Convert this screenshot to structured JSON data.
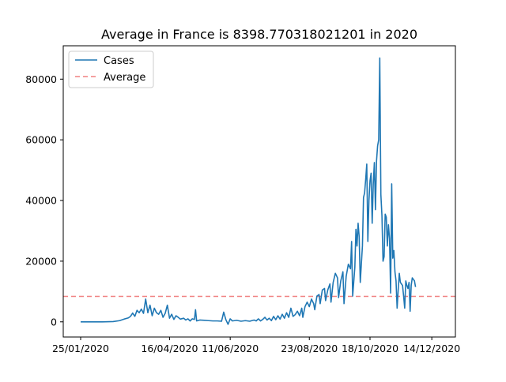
{
  "chart_data": {
    "type": "line",
    "title": "Average in France is 8398.770318021201 in 2020",
    "xlabel": "",
    "ylabel": "",
    "grid": false,
    "legend_position": "upper-left",
    "x_tick_labels": [
      "25/01/2020",
      "16/04/2020",
      "11/06/2020",
      "23/08/2020",
      "18/10/2020",
      "14/12/2020"
    ],
    "x_tick_day_index": [
      0,
      82,
      138,
      211,
      267,
      324
    ],
    "y_ticks": [
      0,
      20000,
      40000,
      60000,
      80000
    ],
    "y_tick_labels": [
      "0",
      "20000",
      "40000",
      "60000",
      "80000"
    ],
    "ylim": [
      -5000,
      91000
    ],
    "x_range_days": [
      0,
      329
    ],
    "series": [
      {
        "name": "Cases",
        "color": "#1f77b4",
        "style": "solid",
        "points": [
          [
            0,
            0
          ],
          [
            10,
            0
          ],
          [
            20,
            0
          ],
          [
            30,
            100
          ],
          [
            36,
            400
          ],
          [
            40,
            900
          ],
          [
            44,
            1300
          ],
          [
            46,
            1800
          ],
          [
            48,
            2900
          ],
          [
            50,
            1800
          ],
          [
            52,
            3800
          ],
          [
            54,
            3000
          ],
          [
            56,
            4200
          ],
          [
            58,
            2800
          ],
          [
            60,
            7500
          ],
          [
            62,
            3000
          ],
          [
            64,
            5500
          ],
          [
            66,
            2000
          ],
          [
            68,
            4500
          ],
          [
            70,
            3000
          ],
          [
            72,
            2500
          ],
          [
            74,
            3800
          ],
          [
            76,
            1500
          ],
          [
            78,
            2800
          ],
          [
            80,
            5500
          ],
          [
            82,
            1200
          ],
          [
            84,
            2500
          ],
          [
            86,
            800
          ],
          [
            88,
            2000
          ],
          [
            90,
            1500
          ],
          [
            92,
            900
          ],
          [
            95,
            1200
          ],
          [
            97,
            600
          ],
          [
            99,
            1000
          ],
          [
            101,
            300
          ],
          [
            103,
            1000
          ],
          [
            105,
            800
          ],
          [
            106,
            4000
          ],
          [
            107,
            300
          ],
          [
            110,
            600
          ],
          [
            114,
            500
          ],
          [
            118,
            400
          ],
          [
            122,
            300
          ],
          [
            126,
            300
          ],
          [
            130,
            200
          ],
          [
            132,
            3200
          ],
          [
            134,
            700
          ],
          [
            136,
            -800
          ],
          [
            138,
            1000
          ],
          [
            140,
            300
          ],
          [
            144,
            500
          ],
          [
            148,
            200
          ],
          [
            152,
            400
          ],
          [
            156,
            200
          ],
          [
            160,
            600
          ],
          [
            162,
            300
          ],
          [
            164,
            1000
          ],
          [
            166,
            300
          ],
          [
            168,
            800
          ],
          [
            170,
            1500
          ],
          [
            172,
            600
          ],
          [
            174,
            1200
          ],
          [
            176,
            400
          ],
          [
            178,
            1800
          ],
          [
            180,
            700
          ],
          [
            182,
            2000
          ],
          [
            184,
            900
          ],
          [
            186,
            2500
          ],
          [
            188,
            1200
          ],
          [
            190,
            3000
          ],
          [
            192,
            1500
          ],
          [
            194,
            4500
          ],
          [
            196,
            1800
          ],
          [
            198,
            2400
          ],
          [
            200,
            3500
          ],
          [
            202,
            2000
          ],
          [
            204,
            4500
          ],
          [
            205,
            1500
          ],
          [
            207,
            5000
          ],
          [
            209,
            6500
          ],
          [
            211,
            5000
          ],
          [
            213,
            7500
          ],
          [
            215,
            6000
          ],
          [
            216,
            4000
          ],
          [
            218,
            8500
          ],
          [
            220,
            9000
          ],
          [
            221,
            6000
          ],
          [
            223,
            10500
          ],
          [
            225,
            11000
          ],
          [
            226,
            7000
          ],
          [
            228,
            10500
          ],
          [
            230,
            12500
          ],
          [
            231,
            6500
          ],
          [
            233,
            13000
          ],
          [
            235,
            16000
          ],
          [
            237,
            14500
          ],
          [
            238,
            8000
          ],
          [
            240,
            13500
          ],
          [
            242,
            16500
          ],
          [
            243,
            6000
          ],
          [
            245,
            15000
          ],
          [
            247,
            19000
          ],
          [
            249,
            17500
          ],
          [
            250,
            26500
          ],
          [
            251,
            8500
          ],
          [
            253,
            18000
          ],
          [
            254,
            30500
          ],
          [
            255,
            25000
          ],
          [
            256,
            32500
          ],
          [
            257,
            28000
          ],
          [
            258,
            13000
          ],
          [
            260,
            25000
          ],
          [
            261,
            41000
          ],
          [
            262,
            42500
          ],
          [
            263,
            47000
          ],
          [
            264,
            52000
          ],
          [
            265,
            26500
          ],
          [
            266,
            40000
          ],
          [
            267,
            46500
          ],
          [
            268,
            49000
          ],
          [
            269,
            32500
          ],
          [
            270,
            45500
          ],
          [
            271,
            52500
          ],
          [
            272,
            37000
          ],
          [
            273,
            53000
          ],
          [
            274,
            58000
          ],
          [
            275,
            60000
          ],
          [
            276,
            87000
          ],
          [
            277,
            42000
          ],
          [
            278,
            35000
          ],
          [
            279,
            20000
          ],
          [
            280,
            21500
          ],
          [
            281,
            35500
          ],
          [
            282,
            34500
          ],
          [
            283,
            25000
          ],
          [
            284,
            32000
          ],
          [
            285,
            27500
          ],
          [
            286,
            9500
          ],
          [
            287,
            45500
          ],
          [
            288,
            21000
          ],
          [
            289,
            23500
          ],
          [
            290,
            16500
          ],
          [
            291,
            13500
          ],
          [
            292,
            4500
          ],
          [
            293,
            10500
          ],
          [
            294,
            16000
          ],
          [
            295,
            13000
          ],
          [
            296,
            12500
          ],
          [
            297,
            12000
          ],
          [
            298,
            8500
          ],
          [
            299,
            4500
          ],
          [
            300,
            13500
          ],
          [
            301,
            12000
          ],
          [
            302,
            11000
          ],
          [
            303,
            13000
          ],
          [
            304,
            3500
          ],
          [
            305,
            12000
          ],
          [
            306,
            14500
          ],
          [
            307,
            14000
          ],
          [
            308,
            13500
          ],
          [
            309,
            11500
          ]
        ]
      },
      {
        "name": "Average",
        "color": "#f08080",
        "style": "dashed",
        "value": 8398.770318021201
      }
    ]
  }
}
